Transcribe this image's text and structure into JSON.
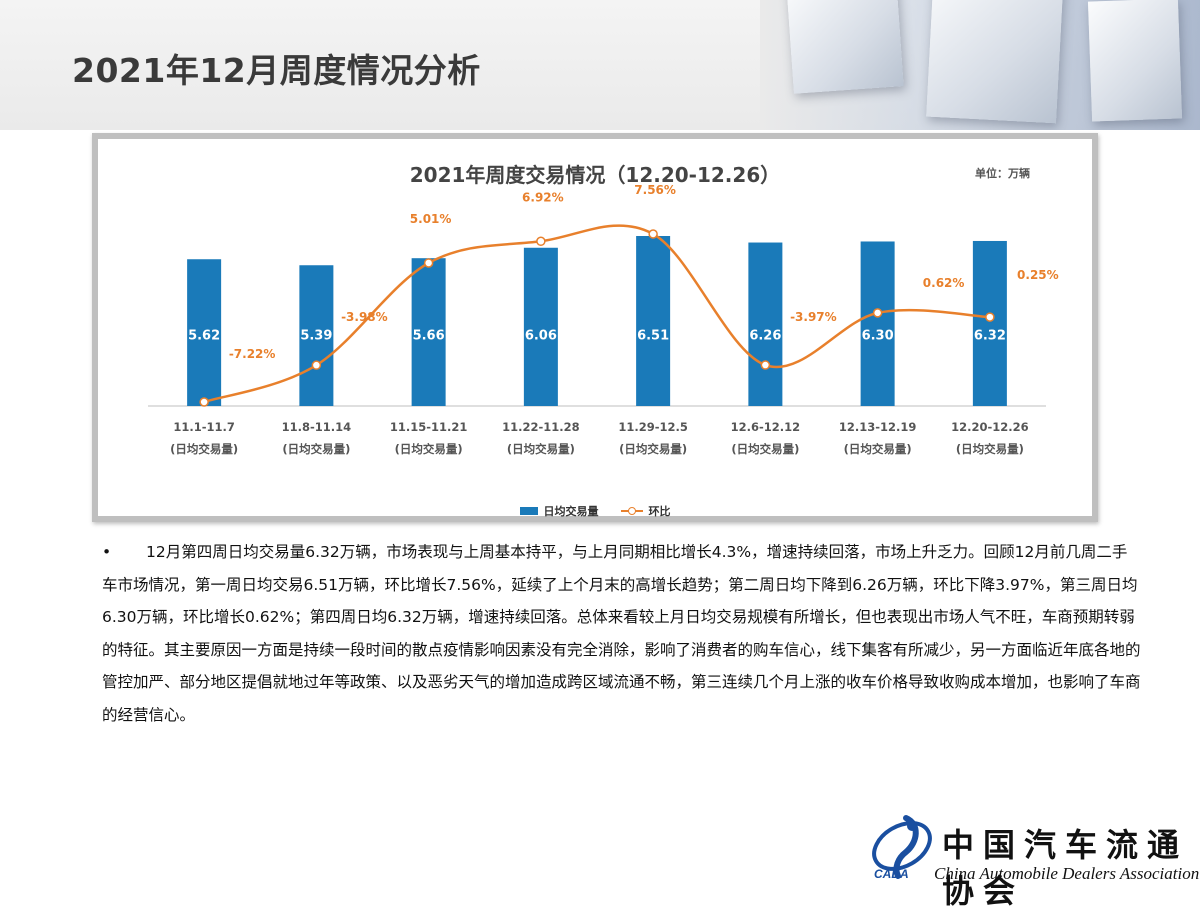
{
  "page": {
    "title": "2021年12月周度情况分析"
  },
  "chart_data": {
    "type": "bar",
    "title": "2021年周度交易情况（12.20-12.26）",
    "unit": "单位：万辆",
    "categories": [
      "11.1-11.7",
      "11.8-11.14",
      "11.15-11.21",
      "11.22-11.28",
      "11.29-12.5",
      "12.6-12.12",
      "12.13-12.19",
      "12.20-12.26"
    ],
    "category_sub": "(日均交易量)",
    "series": [
      {
        "name": "日均交易量",
        "type": "bar",
        "color": "#1a7ab9",
        "values": [
          5.62,
          5.39,
          5.66,
          6.06,
          6.51,
          6.26,
          6.3,
          6.32
        ],
        "labels": [
          "5.62",
          "5.39",
          "5.66",
          "6.06",
          "6.51",
          "6.26",
          "6.30",
          "6.32"
        ]
      },
      {
        "name": "环比",
        "type": "line",
        "color": "#e8802c",
        "values": [
          -7.22,
          -3.98,
          5.01,
          6.92,
          7.56,
          -3.97,
          0.62,
          0.25
        ],
        "labels": [
          "-7.22%",
          "-3.98%",
          "5.01%",
          "6.92%",
          "7.56%",
          "-3.97%",
          "0.62%",
          "0.25%"
        ]
      }
    ],
    "legend_position": "bottom",
    "grid": false
  },
  "body": {
    "bullet": "•",
    "paragraph": "12月第四周日均交易量6.32万辆，市场表现与上周基本持平，与上月同期相比增长4.3%，增速持续回落，市场上升乏力。回顾12月前几周二手车市场情况，第一周日均交易6.51万辆，环比增长7.56%，延续了上个月末的高增长趋势；第二周日均下降到6.26万辆，环比下降3.97%，第三周日均6.30万辆，环比增长0.62%；第四周日均6.32万辆，增速持续回落。总体来看较上月日均交易规模有所增长，但也表现出市场人气不旺，车商预期转弱的特征。其主要原因一方面是持续一段时间的散点疫情影响因素没有完全消除，影响了消费者的购车信心，线下集客有所减少，另一方面临近年底各地的管控加严、部分地区提倡就地过年等政策、以及恶劣天气的增加造成跨区域流通不畅，第三连续几个月上涨的收车价格导致收购成本增加，也影响了车商的经营信心。"
  },
  "logo": {
    "cn": "中国汽车流通协会",
    "en": "China Automobile Dealers Association",
    "abbr": "CADA"
  },
  "colors": {
    "bar": "#1a7ab9",
    "line": "#e8802c"
  }
}
